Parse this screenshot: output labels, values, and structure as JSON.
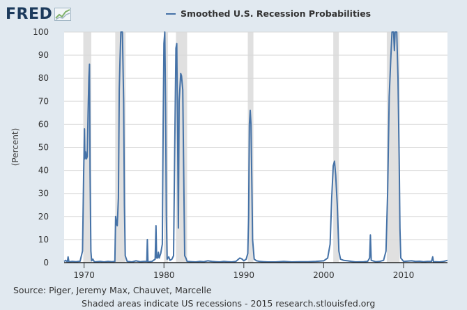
{
  "logo": {
    "text": "FRED"
  },
  "legend": {
    "label": "Smoothed U.S. Recession Probabilities"
  },
  "footer": {
    "source": "Source: Piger, Jeremy Max, Chauvet, Marcelle",
    "note": "Shaded areas indicate US recessions - 2015 research.stlouisfed.org"
  },
  "colors": {
    "line": "#4572a7",
    "recession_band": "#e0e0e0",
    "plot_background": "#ffffff",
    "page_background": "#e1e9f0",
    "grid": "#d8d8d8"
  },
  "chart_data": {
    "type": "line",
    "title": "",
    "xlabel": "",
    "ylabel": "(Percent)",
    "xlim": [
      1967.5,
      2015.5
    ],
    "ylim": [
      0,
      100
    ],
    "x_ticks": [
      1970,
      1980,
      1990,
      2000,
      2010
    ],
    "y_ticks": [
      0,
      10,
      20,
      30,
      40,
      50,
      60,
      70,
      80,
      90,
      100
    ],
    "grid": true,
    "legend_position": "top-center",
    "recessions": [
      [
        1969.9,
        1970.9
      ],
      [
        1973.9,
        1975.2
      ],
      [
        1980.0,
        1980.5
      ],
      [
        1981.5,
        1982.9
      ],
      [
        1990.5,
        1991.2
      ],
      [
        2001.2,
        2001.9
      ],
      [
        2007.9,
        2009.5
      ]
    ],
    "series": [
      {
        "name": "Smoothed U.S. Recession Probabilities",
        "points": [
          [
            1967.5,
            0.5
          ],
          [
            1967.7,
            1
          ],
          [
            1967.9,
            0.3
          ],
          [
            1968.0,
            2.5
          ],
          [
            1968.1,
            0.3
          ],
          [
            1968.5,
            0.5
          ],
          [
            1969.0,
            0.4
          ],
          [
            1969.5,
            0.6
          ],
          [
            1969.8,
            5
          ],
          [
            1969.95,
            40
          ],
          [
            1970.05,
            58
          ],
          [
            1970.1,
            45
          ],
          [
            1970.2,
            48
          ],
          [
            1970.3,
            45
          ],
          [
            1970.4,
            46
          ],
          [
            1970.5,
            65
          ],
          [
            1970.6,
            80
          ],
          [
            1970.68,
            86
          ],
          [
            1970.75,
            40
          ],
          [
            1970.85,
            5
          ],
          [
            1970.95,
            0.8
          ],
          [
            1971.1,
            1.5
          ],
          [
            1971.3,
            0.3
          ],
          [
            1972.0,
            0.5
          ],
          [
            1972.5,
            0.3
          ],
          [
            1973.0,
            0.5
          ],
          [
            1973.5,
            0.4
          ],
          [
            1973.85,
            0.5
          ],
          [
            1973.95,
            20
          ],
          [
            1974.05,
            17
          ],
          [
            1974.15,
            16
          ],
          [
            1974.3,
            28
          ],
          [
            1974.4,
            75
          ],
          [
            1974.5,
            88
          ],
          [
            1974.6,
            100
          ],
          [
            1974.8,
            100
          ],
          [
            1974.95,
            70
          ],
          [
            1975.05,
            25
          ],
          [
            1975.15,
            3
          ],
          [
            1975.4,
            0.5
          ],
          [
            1976.0,
            0.3
          ],
          [
            1976.5,
            0.8
          ],
          [
            1977.0,
            0.4
          ],
          [
            1977.5,
            0.5
          ],
          [
            1977.85,
            0.5
          ],
          [
            1977.92,
            10
          ],
          [
            1978.0,
            0.3
          ],
          [
            1978.5,
            0.5
          ],
          [
            1978.9,
            1.5
          ],
          [
            1979.0,
            16
          ],
          [
            1979.08,
            2
          ],
          [
            1979.2,
            2
          ],
          [
            1979.3,
            4.5
          ],
          [
            1979.4,
            2
          ],
          [
            1979.5,
            3
          ],
          [
            1979.6,
            4
          ],
          [
            1979.8,
            8
          ],
          [
            1979.9,
            60
          ],
          [
            1980.0,
            95
          ],
          [
            1980.1,
            100
          ],
          [
            1980.2,
            70
          ],
          [
            1980.3,
            20
          ],
          [
            1980.4,
            1.5
          ],
          [
            1980.6,
            2.5
          ],
          [
            1980.75,
            1
          ],
          [
            1981.0,
            1.5
          ],
          [
            1981.2,
            3
          ],
          [
            1981.35,
            50
          ],
          [
            1981.5,
            93
          ],
          [
            1981.6,
            95
          ],
          [
            1981.7,
            60
          ],
          [
            1981.8,
            15
          ],
          [
            1981.9,
            70
          ],
          [
            1982.1,
            82
          ],
          [
            1982.2,
            81
          ],
          [
            1982.35,
            75
          ],
          [
            1982.5,
            30
          ],
          [
            1982.6,
            3
          ],
          [
            1982.75,
            2
          ],
          [
            1982.9,
            0.5
          ],
          [
            1983.5,
            0.4
          ],
          [
            1984.0,
            0.3
          ],
          [
            1984.5,
            0.5
          ],
          [
            1985.0,
            0.4
          ],
          [
            1985.5,
            0.8
          ],
          [
            1986.0,
            0.5
          ],
          [
            1986.5,
            0.4
          ],
          [
            1987.0,
            0.3
          ],
          [
            1987.5,
            0.5
          ],
          [
            1988.0,
            0.4
          ],
          [
            1988.5,
            0.3
          ],
          [
            1989.0,
            0.5
          ],
          [
            1989.5,
            2
          ],
          [
            1989.8,
            1.5
          ],
          [
            1990.0,
            0.8
          ],
          [
            1990.3,
            1.5
          ],
          [
            1990.5,
            4
          ],
          [
            1990.6,
            20
          ],
          [
            1990.7,
            60
          ],
          [
            1990.8,
            66
          ],
          [
            1990.9,
            60
          ],
          [
            1991.0,
            35
          ],
          [
            1991.1,
            10
          ],
          [
            1991.3,
            1.5
          ],
          [
            1991.6,
            0.8
          ],
          [
            1992.0,
            0.5
          ],
          [
            1992.5,
            0.4
          ],
          [
            1993.0,
            0.3
          ],
          [
            1994.0,
            0.3
          ],
          [
            1995.0,
            0.5
          ],
          [
            1996.0,
            0.3
          ],
          [
            1997.0,
            0.4
          ],
          [
            1998.0,
            0.4
          ],
          [
            1999.0,
            0.5
          ],
          [
            2000.0,
            0.8
          ],
          [
            2000.5,
            2
          ],
          [
            2000.8,
            8
          ],
          [
            2001.0,
            28
          ],
          [
            2001.2,
            42
          ],
          [
            2001.35,
            44
          ],
          [
            2001.5,
            38
          ],
          [
            2001.7,
            25
          ],
          [
            2001.9,
            5
          ],
          [
            2002.1,
            1.5
          ],
          [
            2002.5,
            1
          ],
          [
            2003.0,
            0.8
          ],
          [
            2003.5,
            0.5
          ],
          [
            2004.0,
            0.3
          ],
          [
            2005.0,
            0.4
          ],
          [
            2005.5,
            0.5
          ],
          [
            2005.75,
            2
          ],
          [
            2005.85,
            12
          ],
          [
            2005.95,
            1
          ],
          [
            2006.5,
            0.4
          ],
          [
            2007.0,
            0.5
          ],
          [
            2007.5,
            1
          ],
          [
            2007.8,
            5
          ],
          [
            2008.0,
            30
          ],
          [
            2008.2,
            72
          ],
          [
            2008.4,
            88
          ],
          [
            2008.55,
            100
          ],
          [
            2008.75,
            100
          ],
          [
            2008.85,
            92
          ],
          [
            2008.95,
            100
          ],
          [
            2009.15,
            100
          ],
          [
            2009.3,
            80
          ],
          [
            2009.45,
            45
          ],
          [
            2009.55,
            15
          ],
          [
            2009.65,
            2
          ],
          [
            2010.0,
            0.5
          ],
          [
            2011.0,
            0.8
          ],
          [
            2011.5,
            0.5
          ],
          [
            2012.0,
            0.6
          ],
          [
            2012.5,
            0.4
          ],
          [
            2013.0,
            0.5
          ],
          [
            2013.5,
            0.5
          ],
          [
            2013.65,
            2.5
          ],
          [
            2013.75,
            0.3
          ],
          [
            2014.0,
            0.4
          ],
          [
            2014.5,
            0.3
          ],
          [
            2015.0,
            0.5
          ],
          [
            2015.5,
            1
          ]
        ]
      }
    ]
  }
}
